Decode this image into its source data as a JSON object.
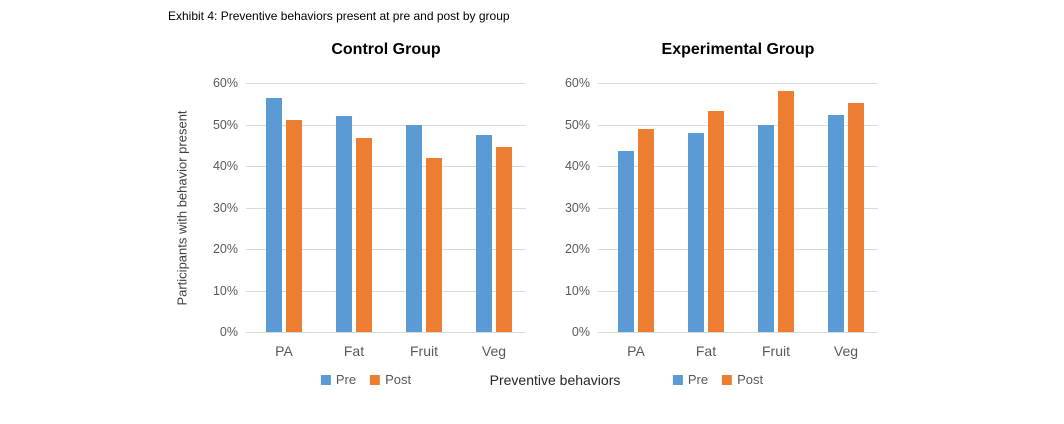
{
  "figure": {
    "exhibit_title": "Exhibit 4: Preventive behaviors present at pre and post by group",
    "x_axis_label": "Preventive behaviors"
  },
  "colors": {
    "pre_blue": "#5B9BD5",
    "post_orange": "#ED7D31",
    "gridline_gray": "#D9D9D9"
  },
  "chart_data": [
    {
      "type": "bar",
      "title": "Control Group",
      "categories": [
        "PA",
        "Fat",
        "Fruit",
        "Veg"
      ],
      "series": [
        {
          "name": "Pre",
          "color": "#5B9BD5",
          "values": [
            56.5,
            52.0,
            50.0,
            47.5
          ]
        },
        {
          "name": "Post",
          "color": "#ED7D31",
          "values": [
            51.0,
            46.7,
            42.0,
            44.5
          ]
        }
      ],
      "xlabel": "Preventive behaviors",
      "ylabel": "Participants with behavior present",
      "ylim": [
        0,
        60
      ],
      "ytick_step": 10,
      "ytick_format": "percent",
      "grid": true,
      "legend_position": "bottom",
      "legend_labels": [
        "Pre",
        "Post"
      ]
    },
    {
      "type": "bar",
      "title": "Experimental Group",
      "categories": [
        "PA",
        "Fat",
        "Fruit",
        "Veg"
      ],
      "series": [
        {
          "name": "Pre",
          "color": "#5B9BD5",
          "values": [
            43.5,
            48.0,
            50.0,
            52.3
          ]
        },
        {
          "name": "Post",
          "color": "#ED7D31",
          "values": [
            49.0,
            53.3,
            58.0,
            55.2
          ]
        }
      ],
      "xlabel": "Preventive behaviors",
      "ylabel": "",
      "ylim": [
        0,
        60
      ],
      "ytick_step": 10,
      "ytick_format": "percent",
      "grid": true,
      "legend_position": "bottom",
      "legend_labels": [
        "Pre",
        "Post"
      ]
    }
  ]
}
